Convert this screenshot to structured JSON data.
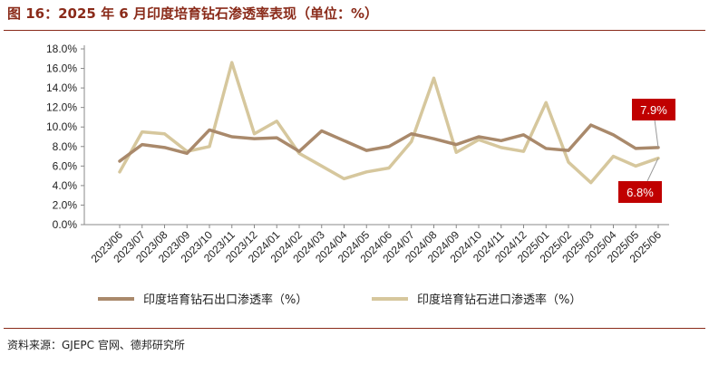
{
  "header": {
    "title": "图 16：2025 年 6 月印度培育钻石渗透率表现（单位：%）"
  },
  "footer": {
    "source": "资料来源：GJEPC 官网、德邦研究所"
  },
  "colors": {
    "brand": "#8a2b1a",
    "export_series": "#a9896b",
    "import_series": "#d6c79d",
    "callout": "#c00000"
  },
  "chart_data": {
    "type": "line",
    "x": [
      "2023/06",
      "2023/07",
      "2023/08",
      "2023/09",
      "2023/10",
      "2023/11",
      "2023/12",
      "2024/01",
      "2024/02",
      "2024/03",
      "2024/04",
      "2024/05",
      "2024/06",
      "2024/07",
      "2024/08",
      "2024/09",
      "2024/10",
      "2024/11",
      "2024/12",
      "2025/01",
      "2025/02",
      "2025/03",
      "2025/04",
      "2025/05",
      "2025/06"
    ],
    "ylim": [
      0,
      18
    ],
    "yticks": [
      "0.0%",
      "2.0%",
      "4.0%",
      "6.0%",
      "8.0%",
      "10.0%",
      "12.0%",
      "14.0%",
      "16.0%",
      "18.0%"
    ],
    "series": [
      {
        "name": "印度培育钻石出口渗透率（%）",
        "values": [
          6.5,
          8.2,
          7.9,
          7.3,
          9.7,
          9.0,
          8.8,
          8.9,
          7.5,
          9.6,
          8.6,
          7.6,
          8.0,
          9.3,
          8.8,
          8.2,
          9.0,
          8.6,
          9.2,
          7.8,
          7.6,
          10.2,
          9.2,
          7.8,
          7.9
        ]
      },
      {
        "name": "印度培育钻石进口渗透率（%）",
        "values": [
          5.4,
          9.5,
          9.3,
          7.5,
          8.0,
          16.6,
          9.3,
          10.6,
          7.3,
          6.0,
          4.7,
          5.4,
          5.8,
          8.5,
          15.0,
          7.4,
          8.7,
          7.9,
          7.5,
          12.5,
          6.4,
          4.3,
          7.0,
          6.0,
          6.8
        ]
      }
    ],
    "callouts": [
      "7.9%",
      "6.8%"
    ],
    "legend_position": "bottom",
    "grid": false
  }
}
